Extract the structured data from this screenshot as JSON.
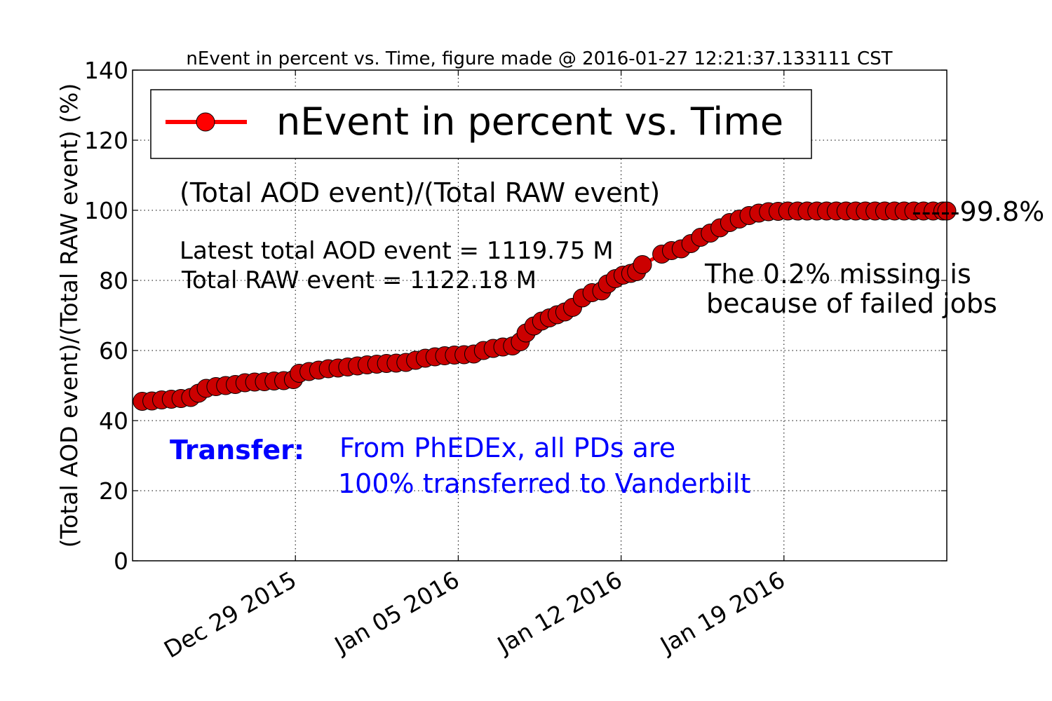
{
  "chart_data": {
    "type": "line",
    "title": "nEvent in percent vs. Time, figure made @ 2016-01-27 12:21:37.133111 CST",
    "xlabel": "",
    "ylabel": "(Total AOD event)/(Total RAW event) (%)",
    "x_range": [
      "2015-12-22",
      "2016-01-26"
    ],
    "ylim": [
      0,
      140
    ],
    "y_ticks": [
      0,
      20,
      40,
      60,
      80,
      100,
      120,
      140
    ],
    "x_ticks": [
      "Dec 29 2015",
      "Jan 05 2016",
      "Jan 12 2016",
      "Jan 19 2016"
    ],
    "x_tick_dates": [
      "2015-12-29",
      "2016-01-05",
      "2016-01-12",
      "2016-01-19"
    ],
    "grid": true,
    "legend_position": "top",
    "series": [
      {
        "name": "nEvent in percent vs. Time",
        "color": "#ff0000",
        "marker_color": "#cc0000",
        "points": [
          [
            "2015-12-22 10:00",
            45.5
          ],
          [
            "2015-12-22 20:00",
            45.6
          ],
          [
            "2015-12-23 06:00",
            45.9
          ],
          [
            "2015-12-23 16:00",
            46.1
          ],
          [
            "2015-12-24 02:00",
            46.3
          ],
          [
            "2015-12-24 12:00",
            46.6
          ],
          [
            "2015-12-24 20:00",
            47.8
          ],
          [
            "2015-12-25 04:00",
            49.2
          ],
          [
            "2015-12-25 14:00",
            49.7
          ],
          [
            "2015-12-26 00:00",
            50.0
          ],
          [
            "2015-12-26 10:00",
            50.3
          ],
          [
            "2015-12-26 20:00",
            50.8
          ],
          [
            "2015-12-27 06:00",
            51.0
          ],
          [
            "2015-12-27 16:00",
            51.1
          ],
          [
            "2015-12-28 02:00",
            51.3
          ],
          [
            "2015-12-28 12:00",
            51.4
          ],
          [
            "2015-12-28 22:00",
            51.7
          ],
          [
            "2015-12-29 04:00",
            53.5
          ],
          [
            "2015-12-29 14:00",
            54.0
          ],
          [
            "2015-12-30 00:00",
            54.4
          ],
          [
            "2015-12-30 10:00",
            54.8
          ],
          [
            "2015-12-30 20:00",
            55.0
          ],
          [
            "2015-12-31 06:00",
            55.3
          ],
          [
            "2015-12-31 16:00",
            55.6
          ],
          [
            "2016-01-01 02:00",
            55.9
          ],
          [
            "2016-01-01 12:00",
            56.1
          ],
          [
            "2016-01-01 22:00",
            56.3
          ],
          [
            "2016-01-02 08:00",
            56.4
          ],
          [
            "2016-01-02 18:00",
            56.6
          ],
          [
            "2016-01-03 04:00",
            57.2
          ],
          [
            "2016-01-03 14:00",
            57.8
          ],
          [
            "2016-01-04 00:00",
            58.2
          ],
          [
            "2016-01-04 10:00",
            58.5
          ],
          [
            "2016-01-04 20:00",
            58.7
          ],
          [
            "2016-01-05 06:00",
            58.8
          ],
          [
            "2016-01-05 16:00",
            59.0
          ],
          [
            "2016-01-06 02:00",
            60.0
          ],
          [
            "2016-01-06 12:00",
            60.6
          ],
          [
            "2016-01-06 22:00",
            61.0
          ],
          [
            "2016-01-07 08:00",
            61.3
          ],
          [
            "2016-01-07 16:00",
            62.5
          ],
          [
            "2016-01-07 22:00",
            65.0
          ],
          [
            "2016-01-08 06:00",
            67.0
          ],
          [
            "2016-01-08 14:00",
            68.4
          ],
          [
            "2016-01-08 22:00",
            69.3
          ],
          [
            "2016-01-09 06:00",
            70.2
          ],
          [
            "2016-01-09 14:00",
            71.0
          ],
          [
            "2016-01-09 22:00",
            72.3
          ],
          [
            "2016-01-10 08:00",
            75.0
          ],
          [
            "2016-01-10 18:00",
            76.5
          ],
          [
            "2016-01-11 04:00",
            77.0
          ],
          [
            "2016-01-11 10:00",
            79.0
          ],
          [
            "2016-01-11 18:00",
            80.5
          ],
          [
            "2016-01-12 02:00",
            81.5
          ],
          [
            "2016-01-12 10:00",
            82.0
          ],
          [
            "2016-01-12 16:00",
            82.5
          ],
          [
            "2016-01-12 22:00",
            84.5
          ],
          [
            "2016-01-13 18:00",
            87.5
          ],
          [
            "2016-01-14 04:00",
            88.5
          ],
          [
            "2016-01-14 14:00",
            89.0
          ],
          [
            "2016-01-15 00:00",
            90.5
          ],
          [
            "2016-01-15 10:00",
            92.3
          ],
          [
            "2016-01-15 20:00",
            93.5
          ],
          [
            "2016-01-16 06:00",
            95.0
          ],
          [
            "2016-01-16 16:00",
            96.5
          ],
          [
            "2016-01-17 02:00",
            97.5
          ],
          [
            "2016-01-17 12:00",
            98.5
          ],
          [
            "2016-01-17 22:00",
            99.2
          ],
          [
            "2016-01-18 08:00",
            99.6
          ],
          [
            "2016-01-18 18:00",
            99.7
          ],
          [
            "2016-01-19 04:00",
            99.8
          ],
          [
            "2016-01-19 14:00",
            99.8
          ],
          [
            "2016-01-20 00:00",
            99.8
          ],
          [
            "2016-01-20 10:00",
            99.8
          ],
          [
            "2016-01-20 20:00",
            99.8
          ],
          [
            "2016-01-21 06:00",
            99.8
          ],
          [
            "2016-01-21 16:00",
            99.8
          ],
          [
            "2016-01-22 02:00",
            99.8
          ],
          [
            "2016-01-22 12:00",
            99.8
          ],
          [
            "2016-01-22 22:00",
            99.8
          ],
          [
            "2016-01-23 08:00",
            99.8
          ],
          [
            "2016-01-23 18:00",
            99.8
          ],
          [
            "2016-01-24 04:00",
            99.8
          ],
          [
            "2016-01-24 14:00",
            99.8
          ],
          [
            "2016-01-25 00:00",
            99.8
          ],
          [
            "2016-01-25 10:00",
            99.8
          ],
          [
            "2016-01-25 20:00",
            99.8
          ],
          [
            "2016-01-26 00:00",
            99.8
          ]
        ]
      }
    ],
    "annotations": {
      "ratio_label": "(Total AOD event)/(Total RAW event)",
      "aod_line": "Latest total AOD event = 1119.75 M",
      "raw_line": "Total RAW event = 1122.18 M",
      "final_value_label": "-----99.8%",
      "missing_line1": "The 0.2% missing is",
      "missing_line2": "because of failed jobs",
      "transfer_label": "Transfer:",
      "transfer_line1": "From PhEDEx, all PDs are",
      "transfer_line2": "100% transferred to Vanderbilt"
    },
    "colors": {
      "transfer_text": "#0000ff",
      "annotation_text": "#000000"
    }
  }
}
